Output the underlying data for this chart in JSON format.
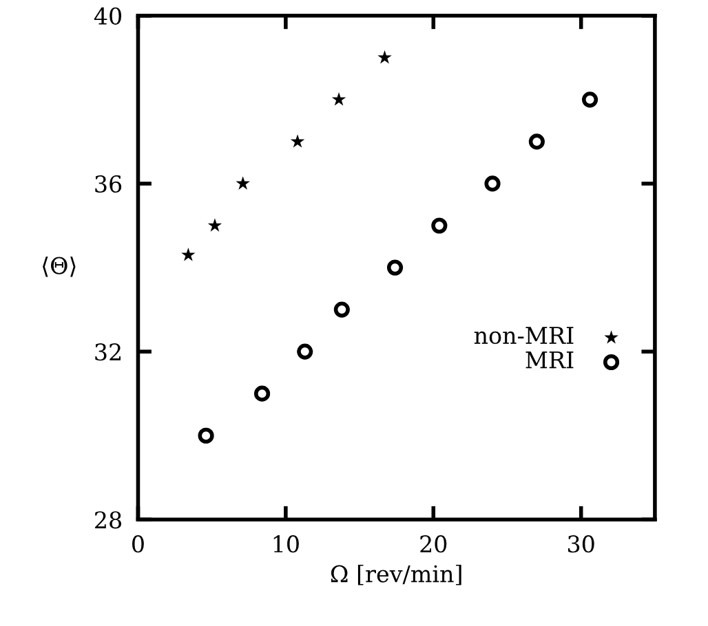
{
  "chart_data": {
    "type": "scatter",
    "xlabel": "Ω [rev/min]",
    "ylabel": "⟨Θ⟩",
    "xlim": [
      0,
      35
    ],
    "ylim": [
      28,
      40
    ],
    "xticks": [
      0,
      10,
      20,
      30
    ],
    "yticks": [
      28,
      32,
      36,
      40
    ],
    "grid": false,
    "legend": "bottom right",
    "series": [
      {
        "name": "non-MRI",
        "color": "#000000",
        "marker": "star",
        "x": [
          3.4,
          5.2,
          7.1,
          10.8,
          13.6,
          16.7
        ],
        "values": [
          34.3,
          35.0,
          36.0,
          37.0,
          38.0,
          39.0
        ]
      },
      {
        "name": "MRI",
        "color": "#000000",
        "marker": "circle",
        "x": [
          4.6,
          8.4,
          11.3,
          13.8,
          17.4,
          20.4,
          24.0,
          27.0,
          30.6
        ],
        "values": [
          30.0,
          31.0,
          32.0,
          33.0,
          34.0,
          35.0,
          36.0,
          37.0,
          38.0
        ]
      }
    ]
  }
}
